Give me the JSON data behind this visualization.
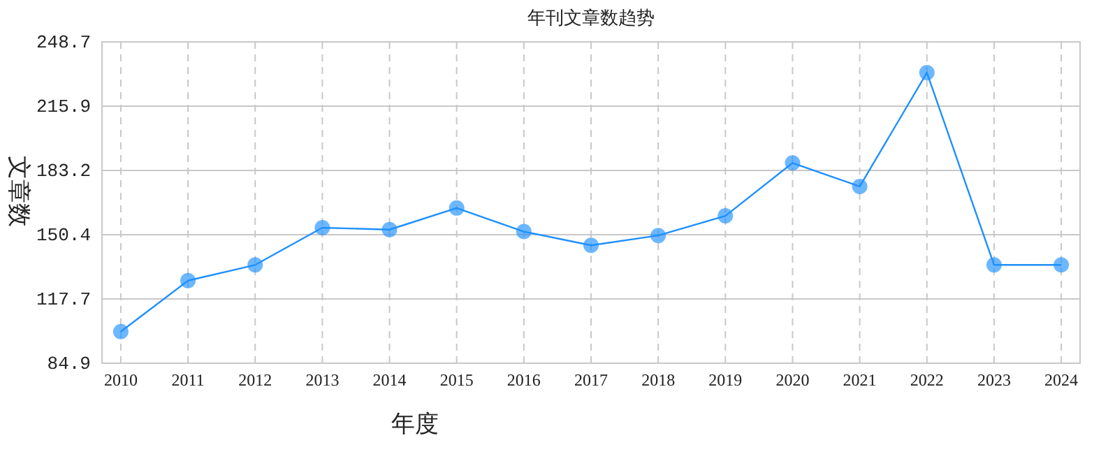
{
  "chart_data": {
    "type": "line",
    "title": "年刊文章数趋势",
    "xlabel": "年度",
    "ylabel": "文章数",
    "categories": [
      "2010",
      "2011",
      "2012",
      "2013",
      "2014",
      "2015",
      "2016",
      "2017",
      "2018",
      "2019",
      "2020",
      "2021",
      "2022",
      "2023",
      "2024"
    ],
    "series": [
      {
        "color": "#1e90ff",
        "values": [
          101,
          127,
          135,
          154,
          153,
          164,
          152,
          145,
          150,
          160,
          187,
          175,
          233,
          135,
          135
        ]
      }
    ],
    "ylim": [
      84.9,
      248.7
    ],
    "yticks": [
      84.9,
      117.7,
      150.4,
      183.2,
      215.9,
      248.7
    ],
    "grid": true,
    "marker": "circle",
    "line_style": "solid"
  }
}
